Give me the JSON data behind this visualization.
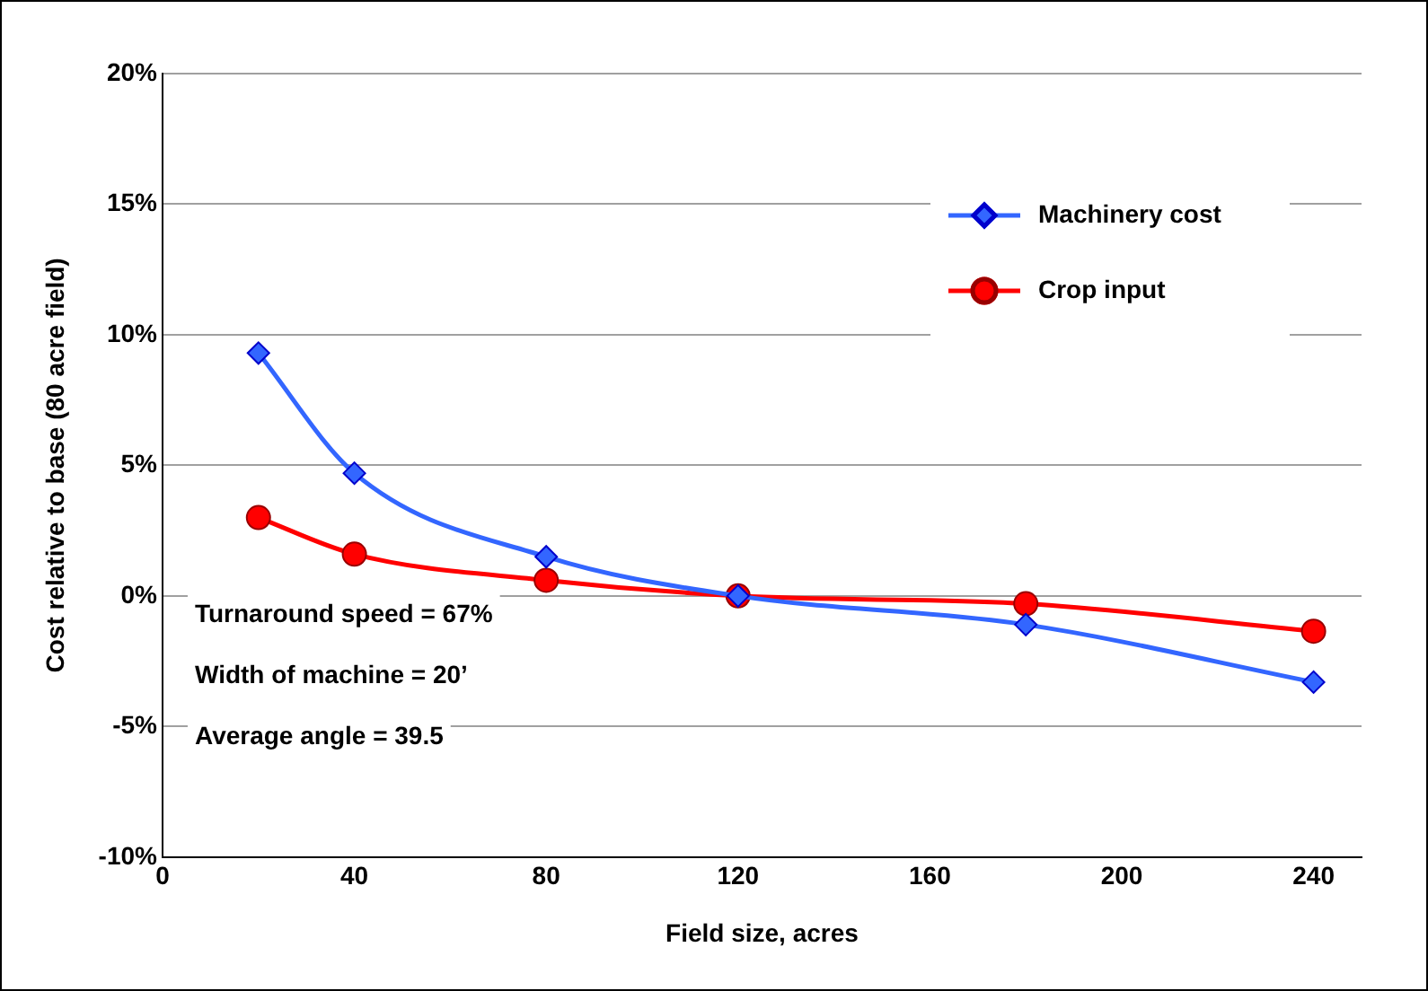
{
  "chart_data": {
    "type": "line",
    "xlabel": "Field size, acres",
    "ylabel": "Cost relative to base (80 acre field)",
    "x": [
      20,
      40,
      80,
      120,
      180,
      240
    ],
    "series": [
      {
        "name": "Machinery cost",
        "color": "#3366ff",
        "marker": "diamond",
        "values": [
          9.3,
          4.7,
          1.5,
          0,
          -1.1,
          -3.3
        ]
      },
      {
        "name": "Crop input",
        "color": "#ff0000",
        "marker": "circle",
        "values": [
          3.0,
          1.6,
          0.6,
          0,
          -0.3,
          -1.35
        ]
      }
    ],
    "xlim": [
      0,
      250
    ],
    "xticks": [
      0,
      40,
      80,
      120,
      160,
      200,
      240
    ],
    "ylim": [
      -10,
      20
    ],
    "yticks": [
      {
        "value": -10,
        "label": "-10%"
      },
      {
        "value": -5,
        "label": "-5%"
      },
      {
        "value": 0,
        "label": "0%"
      },
      {
        "value": 5,
        "label": "5%"
      },
      {
        "value": 10,
        "label": "10%"
      },
      {
        "value": 15,
        "label": "15%"
      },
      {
        "value": 20,
        "label": "20%"
      }
    ],
    "grid": "y",
    "legend": "top right",
    "annotations": [
      "Turnaround speed = 67%",
      "Width of machine = 20’",
      "Average angle = 39.5"
    ]
  }
}
